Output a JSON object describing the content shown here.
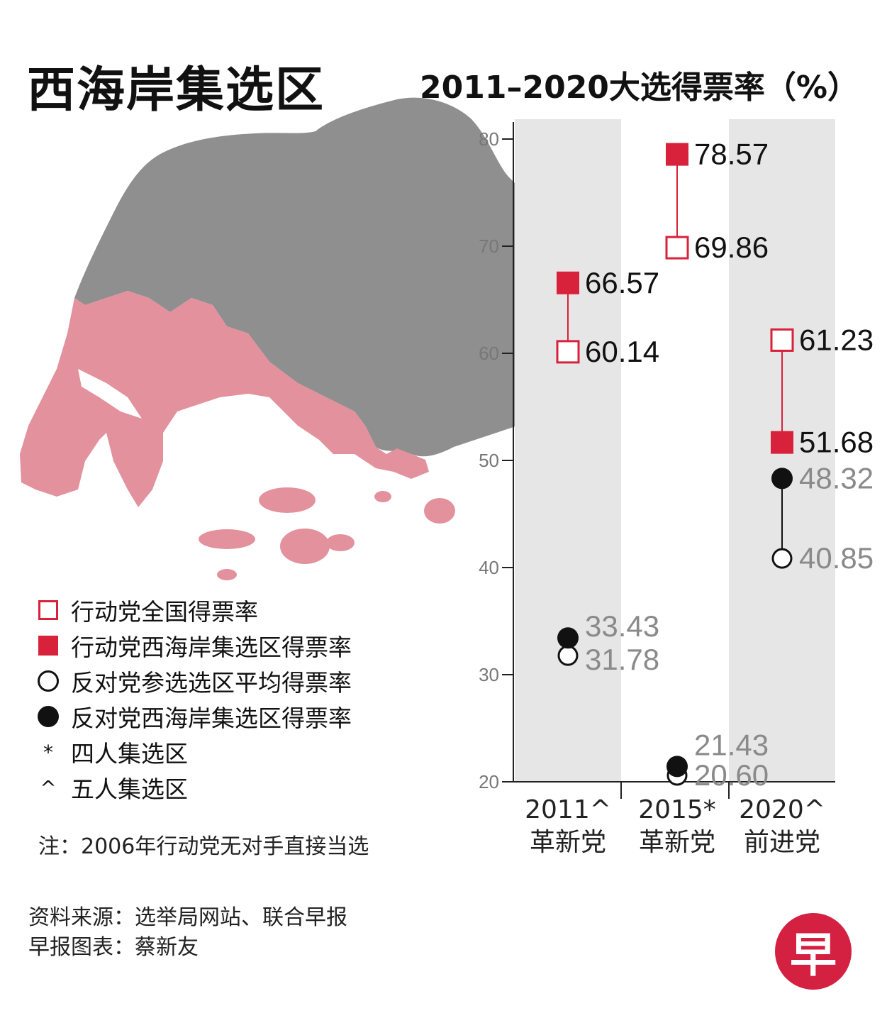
{
  "map_title": "西海岸集选区",
  "chart_title": "2011–2020大选得票率（%）",
  "legend": [
    {
      "symbol": "open-square",
      "label": "行动党全国得票率"
    },
    {
      "symbol": "filled-square",
      "label": "行动党西海岸集选区得票率"
    },
    {
      "symbol": "open-circle",
      "label": "反对党参选选区平均得票率"
    },
    {
      "symbol": "filled-circle",
      "label": "反对党西海岸集选区得票率"
    },
    {
      "symbol": "*",
      "label": "四人集选区"
    },
    {
      "symbol": "^",
      "label": "五人集选区"
    }
  ],
  "note": "注：2006年行动党无对手直接当选",
  "source": "资料来源：选举局网站、联合早报",
  "credit": "早报图表：蔡新友",
  "logo_text": "早",
  "colors": {
    "pap": "#d8213a",
    "opposition": "#111111",
    "opp_label": "#8a8a8a",
    "band": "#e6e6e6",
    "map_gray": "#8f8f8f",
    "map_pink": "#e3919c"
  },
  "chart_data": {
    "type": "dot-range",
    "ylim": [
      20,
      80
    ],
    "yticks": [
      20,
      30,
      40,
      50,
      60,
      70,
      80
    ],
    "categories": [
      {
        "year": "2011^",
        "party": "革新党"
      },
      {
        "year": "2015*",
        "party": "革新党"
      },
      {
        "year": "2020^",
        "party": "前进党"
      }
    ],
    "series": [
      {
        "name": "行动党全国得票率",
        "marker": "open-square",
        "values": [
          60.14,
          69.86,
          61.23
        ],
        "labels": [
          "60.14",
          "69.86",
          "61.23"
        ]
      },
      {
        "name": "行动党西海岸集选区得票率",
        "marker": "filled-square",
        "values": [
          66.57,
          78.57,
          51.68
        ],
        "labels": [
          "66.57",
          "78.57",
          "51.68"
        ]
      },
      {
        "name": "反对党参选选区平均得票率",
        "marker": "open-circle",
        "values": [
          31.78,
          20.6,
          40.85
        ],
        "labels": [
          "31.78",
          "20.60",
          "40.85"
        ]
      },
      {
        "name": "反对党西海岸集选区得票率",
        "marker": "filled-circle",
        "values": [
          33.43,
          21.43,
          48.32
        ],
        "labels": [
          "33.43",
          "21.43",
          "48.32"
        ]
      }
    ]
  }
}
